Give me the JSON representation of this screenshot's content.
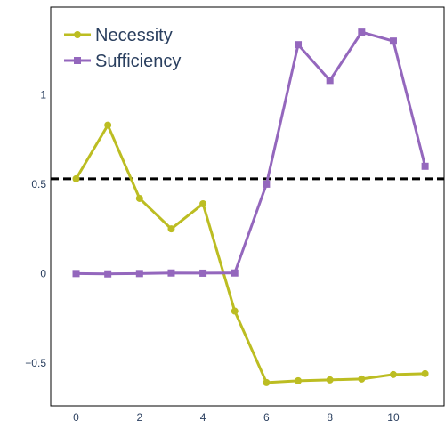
{
  "chart_data": {
    "type": "line",
    "x": [
      0,
      1,
      2,
      3,
      4,
      5,
      6,
      7,
      8,
      9,
      10,
      11
    ],
    "xlim": [
      -0.8,
      11.6
    ],
    "ylim": [
      -0.74,
      1.49
    ],
    "xticks": [
      0,
      2,
      4,
      6,
      8,
      10
    ],
    "yticks": [
      -0.5,
      0,
      0.5,
      1
    ],
    "ytick_labels": [
      "−0.5",
      "0",
      "0.5",
      "1"
    ],
    "grid": false,
    "legend_position": "top-left",
    "series": [
      {
        "name": "Necessity",
        "color": "#bcbd22",
        "marker": "circle",
        "values": [
          0.53,
          0.83,
          0.42,
          0.25,
          0.39,
          -0.21,
          -0.61,
          -0.6,
          -0.595,
          -0.59,
          -0.565,
          -0.56
        ]
      },
      {
        "name": "Sufficiency",
        "color": "#9467bd",
        "marker": "square",
        "values": [
          0.0,
          -0.002,
          0.0,
          0.003,
          0.002,
          0.003,
          0.5,
          1.28,
          1.08,
          1.35,
          1.3,
          0.6
        ]
      }
    ],
    "reference_line": {
      "y": 0.53,
      "style": "dashed",
      "color": "#000000"
    }
  }
}
